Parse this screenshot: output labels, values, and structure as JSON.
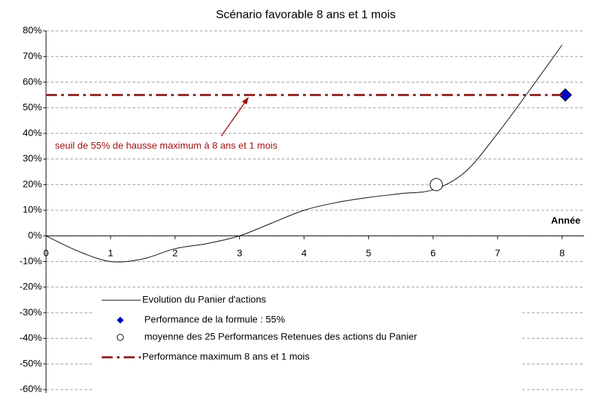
{
  "chart_data": {
    "type": "line",
    "title": "Scénario favorable 8 ans et 1 mois",
    "x_label": "Année",
    "xlim": [
      0,
      8
    ],
    "xticks": [
      0,
      1,
      2,
      3,
      4,
      5,
      6,
      7,
      8
    ],
    "ylim": [
      -60,
      80
    ],
    "yticks": [
      {
        "value": 80,
        "label": "80%"
      },
      {
        "value": 70,
        "label": "70%"
      },
      {
        "value": 60,
        "label": "60%"
      },
      {
        "value": 50,
        "label": "50%"
      },
      {
        "value": 40,
        "label": "40%"
      },
      {
        "value": 30,
        "label": "30%"
      },
      {
        "value": 20,
        "label": "20%"
      },
      {
        "value": 10,
        "label": "10%"
      },
      {
        "value": 0,
        "label": "0%"
      },
      {
        "value": -10,
        "label": "-10%"
      },
      {
        "value": -20,
        "label": "-20%"
      },
      {
        "value": -30,
        "label": "-30%"
      },
      {
        "value": -40,
        "label": "-40%"
      },
      {
        "value": -50,
        "label": "-50%"
      },
      {
        "value": -60,
        "label": "-60%"
      }
    ],
    "grid": true,
    "series": [
      {
        "name": "Evolution du Panier d'actions",
        "color": "#000000",
        "style": "line",
        "x": [
          0,
          0.5,
          1,
          1.5,
          2,
          2.5,
          3,
          3.5,
          4,
          4.5,
          5,
          5.5,
          6,
          6.5,
          7,
          7.5,
          8
        ],
        "values": [
          0,
          -6,
          -10,
          -9,
          -5,
          -3,
          0,
          5,
          10,
          13,
          15,
          16.5,
          18,
          25,
          40,
          57,
          74.5
        ]
      },
      {
        "name": "Performance de la formule : 55%",
        "color": "#0000cc",
        "style": "diamond",
        "x": [
          8.05
        ],
        "values": [
          55
        ]
      },
      {
        "name": "moyenne des 25 Performances Retenues des actions du Panier",
        "color": "#000000",
        "style": "circle",
        "x": [
          6.05
        ],
        "values": [
          20
        ]
      },
      {
        "name": "Performance maximum 8 ans et 1 mois",
        "color": "#8b1a1a",
        "style": "dashdot",
        "x": [
          0,
          8
        ],
        "values": [
          55,
          55
        ]
      }
    ],
    "annotation": "seuil de 55% de hausse maximum à 8 ans et 1 mois"
  }
}
